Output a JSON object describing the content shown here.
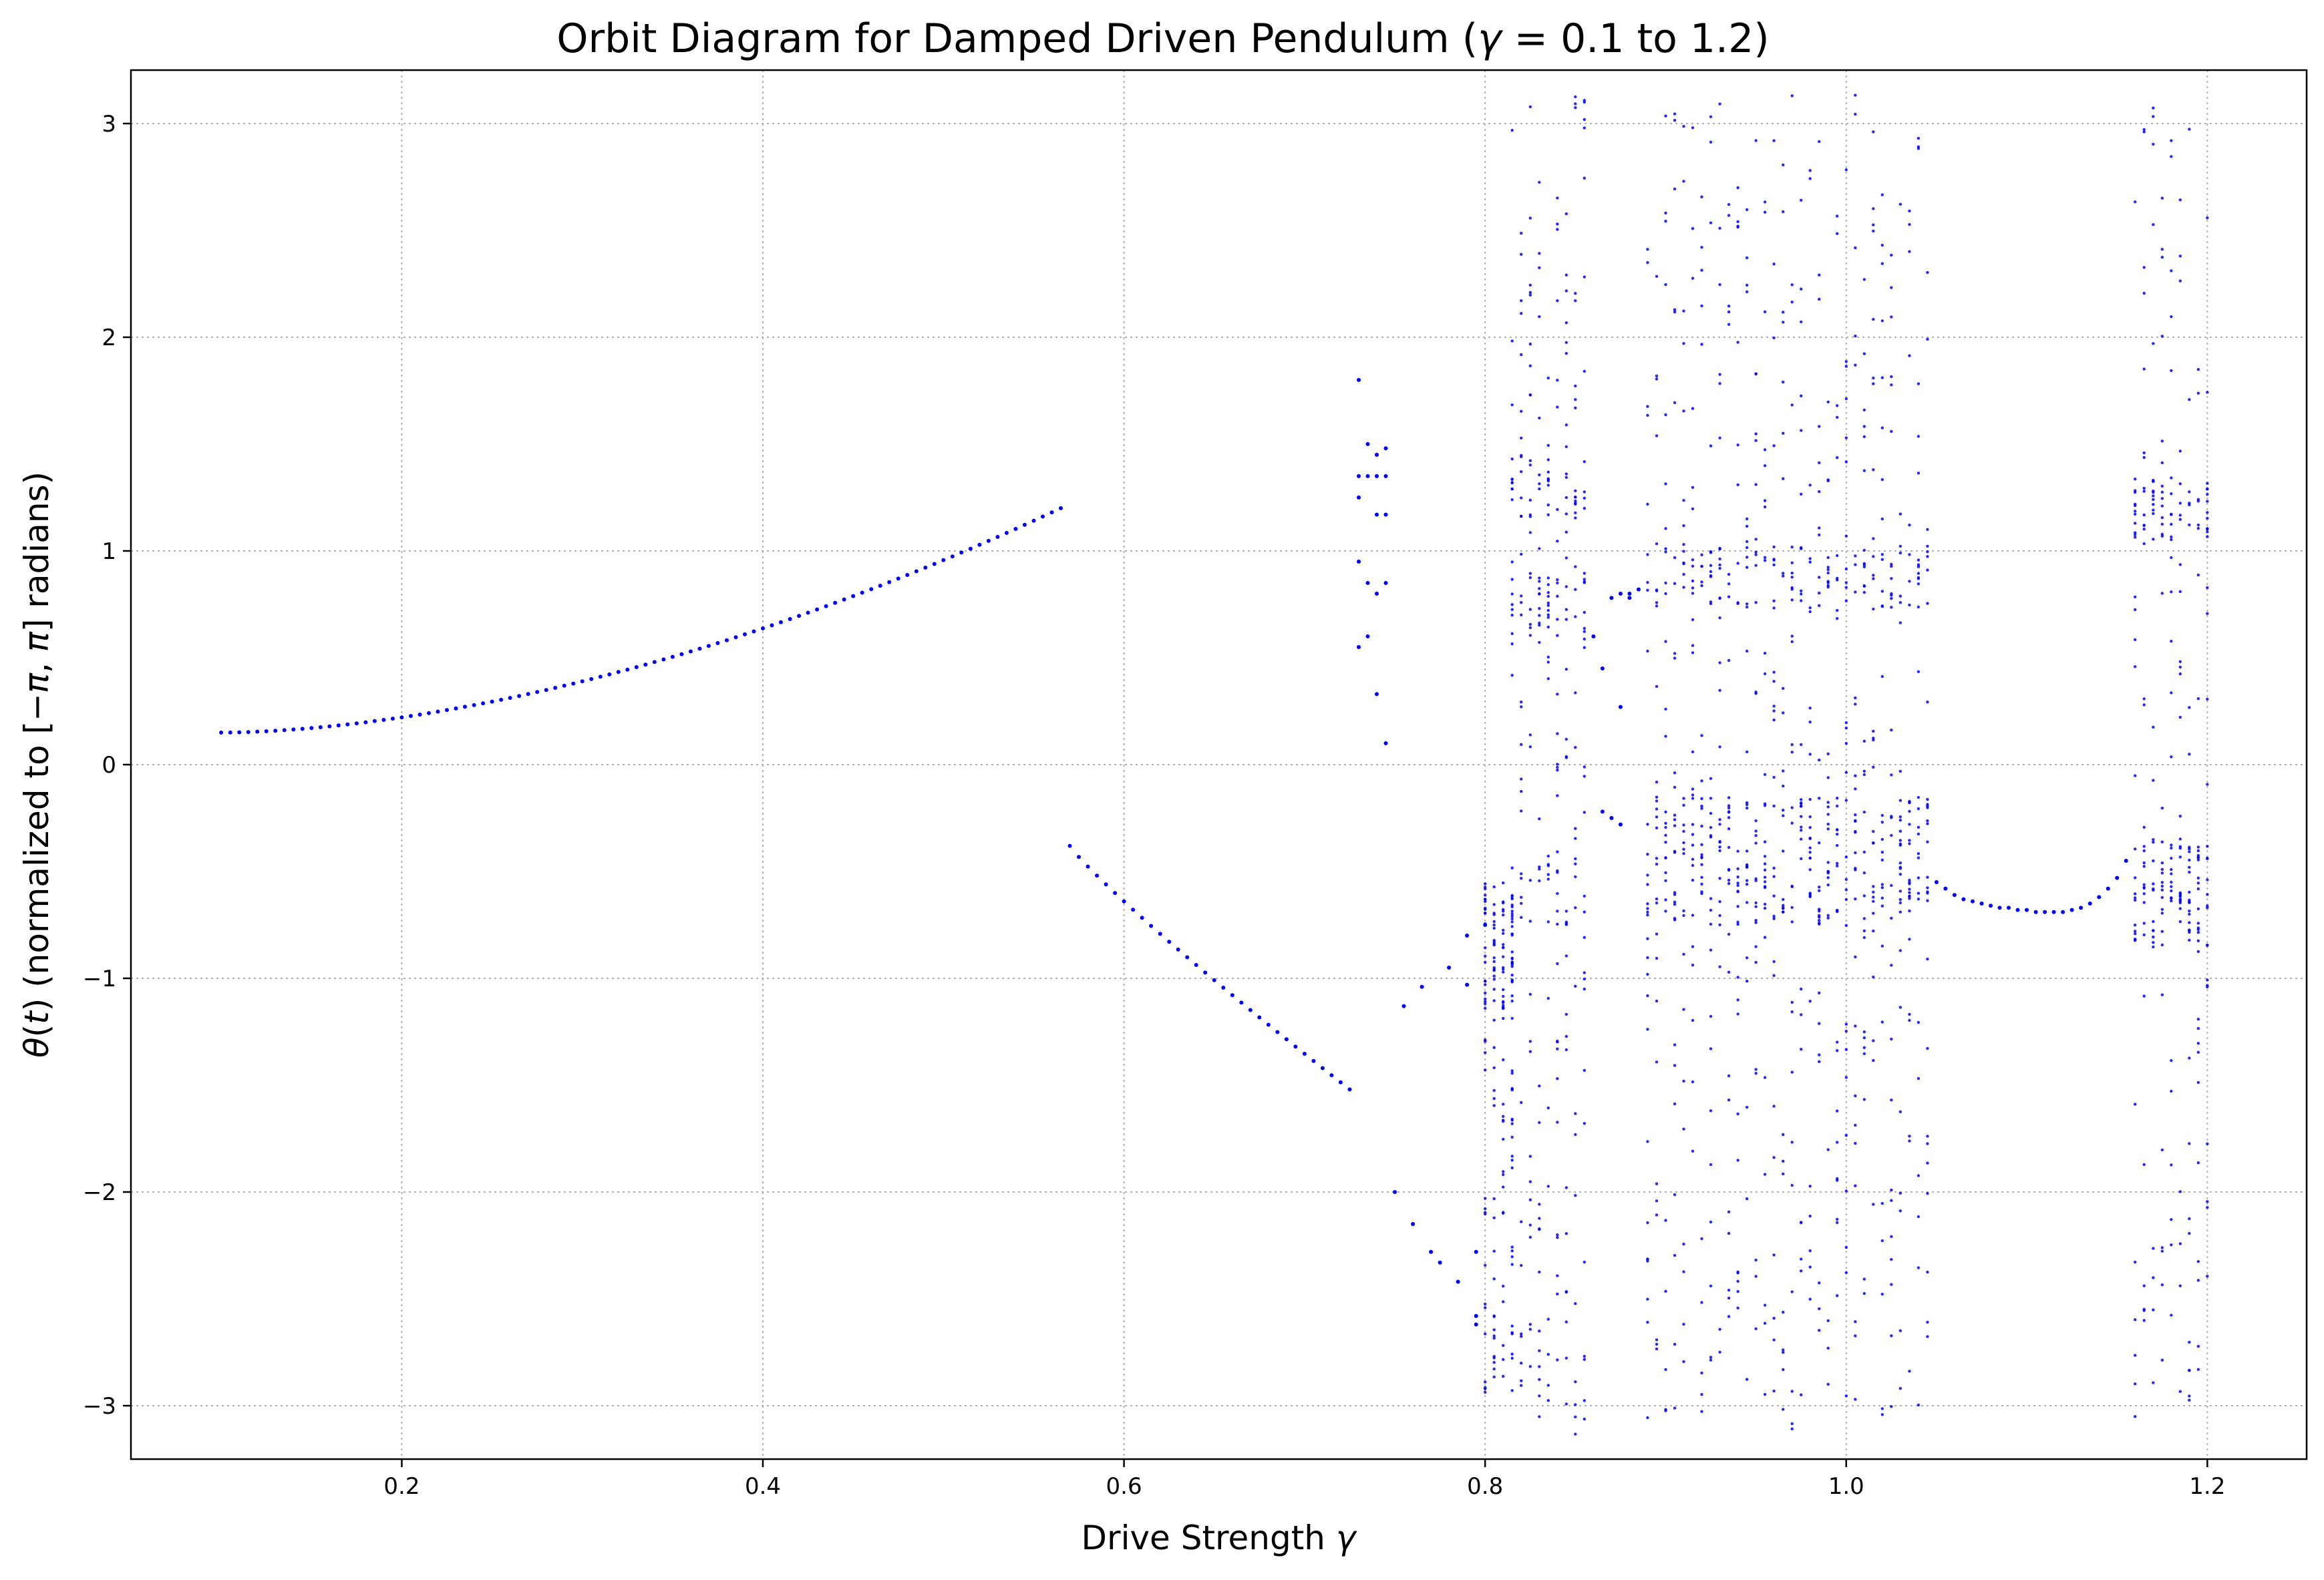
{
  "chart_data": {
    "type": "scatter",
    "title_parts": [
      "Orbit Diagram for Damped Driven Pendulum (",
      "γ",
      " = 0.1 to 1.2)"
    ],
    "xlabel_parts": [
      "Drive Strength ",
      "γ"
    ],
    "ylabel_parts": [
      "θ",
      "(",
      "t",
      ") (normalized to [",
      "−π",
      ", ",
      "π",
      "] radians)"
    ],
    "xlim": [
      0.05,
      1.255
    ],
    "ylim": [
      -3.25,
      3.25
    ],
    "xticks": [
      0.2,
      0.4,
      0.6,
      0.8,
      1.0,
      1.2
    ],
    "xtick_labels": [
      "0.2",
      "0.4",
      "0.6",
      "0.8",
      "1.0",
      "1.2"
    ],
    "yticks": [
      -3,
      -2,
      -1,
      0,
      1,
      2,
      3
    ],
    "ytick_labels": [
      "−3",
      "−2",
      "−1",
      "0",
      "1",
      "2",
      "3"
    ],
    "grid": true,
    "marker_color": "#0000ff",
    "point_groups": [
      {
        "kind": "curve",
        "x0": 0.1,
        "x1": 0.565,
        "step": 0.005,
        "y0": 0.15,
        "y1": 1.2,
        "power": 1.75
      },
      {
        "kind": "curve",
        "x0": 0.57,
        "x1": 0.725,
        "step": 0.005,
        "y0": -0.38,
        "y1": -1.52,
        "power": 0.9
      },
      {
        "kind": "points",
        "points": [
          [
            0.73,
            1.8
          ],
          [
            0.73,
            1.35
          ],
          [
            0.73,
            1.25
          ],
          [
            0.73,
            0.95
          ],
          [
            0.73,
            0.55
          ],
          [
            0.735,
            1.5
          ],
          [
            0.735,
            1.35
          ],
          [
            0.735,
            0.6
          ],
          [
            0.735,
            0.85
          ],
          [
            0.74,
            1.45
          ],
          [
            0.74,
            1.35
          ],
          [
            0.74,
            1.17
          ],
          [
            0.74,
            0.8
          ],
          [
            0.74,
            0.33
          ],
          [
            0.745,
            1.48
          ],
          [
            0.745,
            1.35
          ],
          [
            0.745,
            1.17
          ],
          [
            0.745,
            0.85
          ],
          [
            0.745,
            0.1
          ],
          [
            0.75,
            -2.0
          ],
          [
            0.755,
            -1.13
          ],
          [
            0.76,
            -2.15
          ],
          [
            0.765,
            -1.04
          ],
          [
            0.77,
            -2.28
          ],
          [
            0.775,
            -2.33
          ],
          [
            0.78,
            -0.95
          ],
          [
            0.785,
            -2.42
          ],
          [
            0.79,
            -0.8
          ],
          [
            0.79,
            -1.03
          ],
          [
            0.795,
            -2.28
          ],
          [
            0.795,
            -2.58
          ],
          [
            0.795,
            -2.62
          ],
          [
            0.8,
            -0.75
          ],
          [
            0.865,
            -0.22
          ],
          [
            0.87,
            -0.25
          ],
          [
            0.875,
            -0.28
          ],
          [
            0.875,
            0.27
          ],
          [
            0.88,
            0.78
          ],
          [
            0.88,
            0.8
          ],
          [
            0.885,
            0.82
          ],
          [
            0.86,
            0.6
          ],
          [
            0.865,
            0.45
          ],
          [
            0.87,
            0.78
          ],
          [
            0.875,
            0.8
          ],
          [
            1.05,
            -0.55
          ],
          [
            1.055,
            -0.58
          ],
          [
            1.06,
            -0.61
          ],
          [
            1.065,
            -0.63
          ],
          [
            1.07,
            -0.64
          ],
          [
            1.075,
            -0.65
          ],
          [
            1.08,
            -0.66
          ],
          [
            1.085,
            -0.67
          ],
          [
            1.09,
            -0.67
          ],
          [
            1.095,
            -0.68
          ],
          [
            1.1,
            -0.68
          ],
          [
            1.105,
            -0.69
          ],
          [
            1.11,
            -0.69
          ],
          [
            1.115,
            -0.69
          ],
          [
            1.12,
            -0.69
          ],
          [
            1.125,
            -0.68
          ],
          [
            1.13,
            -0.67
          ],
          [
            1.135,
            -0.65
          ],
          [
            1.14,
            -0.62
          ],
          [
            1.145,
            -0.58
          ],
          [
            1.15,
            -0.53
          ],
          [
            1.155,
            -0.45
          ]
        ]
      },
      {
        "kind": "band",
        "x0": 0.8,
        "x1": 0.815,
        "step": 0.005,
        "ymin": -3.0,
        "ymax": -0.65,
        "n": 40,
        "attractors": [
          -0.7,
          -1.0
        ],
        "frac": 0.45,
        "seed": 11
      },
      {
        "kind": "band",
        "x0": 0.815,
        "x1": 0.855,
        "step": 0.005,
        "ymin": -3.14,
        "ymax": 3.14,
        "n": 36,
        "attractors": [
          0.75,
          1.3,
          -0.6
        ],
        "frac": 0.35,
        "seed": 23
      },
      {
        "kind": "band",
        "x0": 0.89,
        "x1": 1.045,
        "step": 0.005,
        "ymin": -3.14,
        "ymax": 3.14,
        "n": 30,
        "attractors": [
          0.88,
          -0.6,
          -0.3
        ],
        "frac": 0.35,
        "seed": 37
      },
      {
        "kind": "band",
        "x0": 1.16,
        "x1": 1.2,
        "step": 0.005,
        "ymin": -3.1,
        "ymax": 3.1,
        "n": 34,
        "attractors": [
          -0.7,
          -0.5,
          1.2
        ],
        "frac": 0.45,
        "seed": 53
      }
    ]
  }
}
